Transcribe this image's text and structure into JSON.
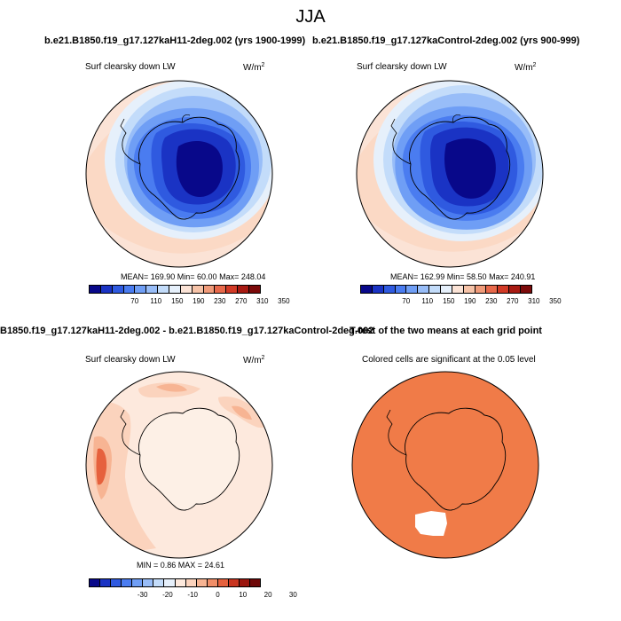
{
  "figure": {
    "title": "JJA",
    "units_base": "W/m",
    "units_exp": "2"
  },
  "panels": {
    "top_left": {
      "title": "b.e21.B1850.f19_g17.127kaH11-2deg.002 (yrs 1900-1999)",
      "subtitle": "Surf clearsky down LW",
      "stats": "MEAN= 169.90  Min=  60.00  Max= 248.04",
      "colorbar_labels": [
        "70",
        "110",
        "150",
        "190",
        "230",
        "270",
        "310",
        "350"
      ]
    },
    "top_right": {
      "title": "b.e21.B1850.f19_g17.127kaControl-2deg.002 (yrs 900-999)",
      "subtitle": "Surf clearsky down LW",
      "stats": "MEAN= 162.99  Min=  58.50  Max= 240.91",
      "colorbar_labels": [
        "70",
        "110",
        "150",
        "190",
        "230",
        "270",
        "310",
        "350"
      ]
    },
    "bottom_left": {
      "title": "B1850.f19_g17.127kaH11-2deg.002 - b.e21.B1850.f19_g17.127kaControl-2deg.002",
      "subtitle": "Surf clearsky down LW",
      "stats": "MIN =  0.86 MAX = 24.61",
      "colorbar_labels": [
        "-30",
        "-20",
        "-10",
        "0",
        "10",
        "20",
        "30"
      ]
    },
    "bottom_right": {
      "title": "T-test of the two means at each grid point",
      "subtitle": "Colored cells are significant at the 0.05 level"
    }
  },
  "colors": {
    "abs_scale": [
      "#08088a",
      "#1a33c4",
      "#2f5ae0",
      "#4a7cf0",
      "#6f9ef5",
      "#98bdf8",
      "#c3dcfa",
      "#e6f0fb",
      "#fbe3d6",
      "#f6c3a8",
      "#f09b7a",
      "#e8694b",
      "#d23a26",
      "#a81a12",
      "#7c0a0a"
    ],
    "diff_scale": [
      "#08088a",
      "#1a33c4",
      "#2f5ae0",
      "#4a7cf0",
      "#6f9ef5",
      "#98bdf8",
      "#c3dcfa",
      "#e6f0fb",
      "#fde9dd",
      "#fbd3bd",
      "#f7b493",
      "#f08e68",
      "#e6613d",
      "#c93520",
      "#9b160e",
      "#6e0808"
    ],
    "significant": "#f07b48"
  }
}
